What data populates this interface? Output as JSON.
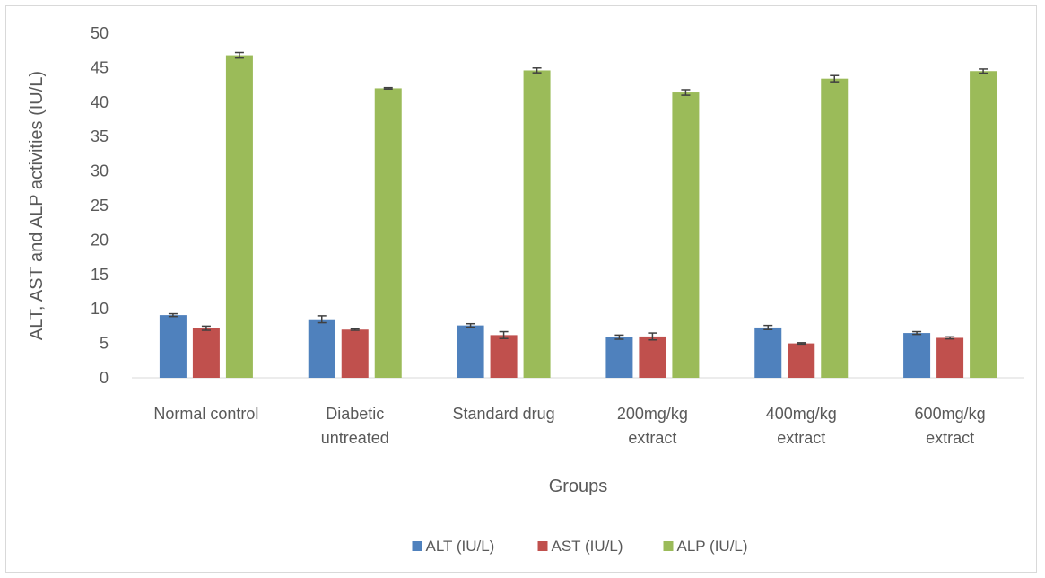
{
  "chart_data": {
    "type": "bar",
    "categories": [
      [
        "Normal control"
      ],
      [
        "Diabetic",
        "untreated"
      ],
      [
        "Standard drug"
      ],
      [
        "200mg/kg",
        "extract"
      ],
      [
        "400mg/kg",
        "extract"
      ],
      [
        "600mg/kg",
        "extract"
      ]
    ],
    "series": [
      {
        "name": "ALT (IU/L)",
        "color": "#4F81BD",
        "values": [
          9.1,
          8.5,
          7.6,
          5.9,
          7.3,
          6.5
        ],
        "errors": [
          0.2,
          0.5,
          0.25,
          0.3,
          0.3,
          0.2
        ]
      },
      {
        "name": "AST (IU/L)",
        "color": "#C0504D",
        "values": [
          7.2,
          7.0,
          6.2,
          6.0,
          5.0,
          5.8
        ],
        "errors": [
          0.3,
          0.1,
          0.5,
          0.5,
          0.1,
          0.15
        ]
      },
      {
        "name": "ALP (IU/L)",
        "color": "#9BBB59",
        "values": [
          46.8,
          42.0,
          44.6,
          41.4,
          43.4,
          44.5
        ],
        "errors": [
          0.4,
          0.1,
          0.35,
          0.4,
          0.45,
          0.3
        ]
      }
    ],
    "title": "",
    "xlabel": "Groups",
    "ylabel": "ALT, AST and ALP activities (IU/L)",
    "ylim": [
      0,
      50
    ],
    "yticks": [
      0,
      5,
      10,
      15,
      20,
      25,
      30,
      35,
      40,
      45,
      50
    ],
    "grid": false,
    "legend_position": "bottom"
  }
}
